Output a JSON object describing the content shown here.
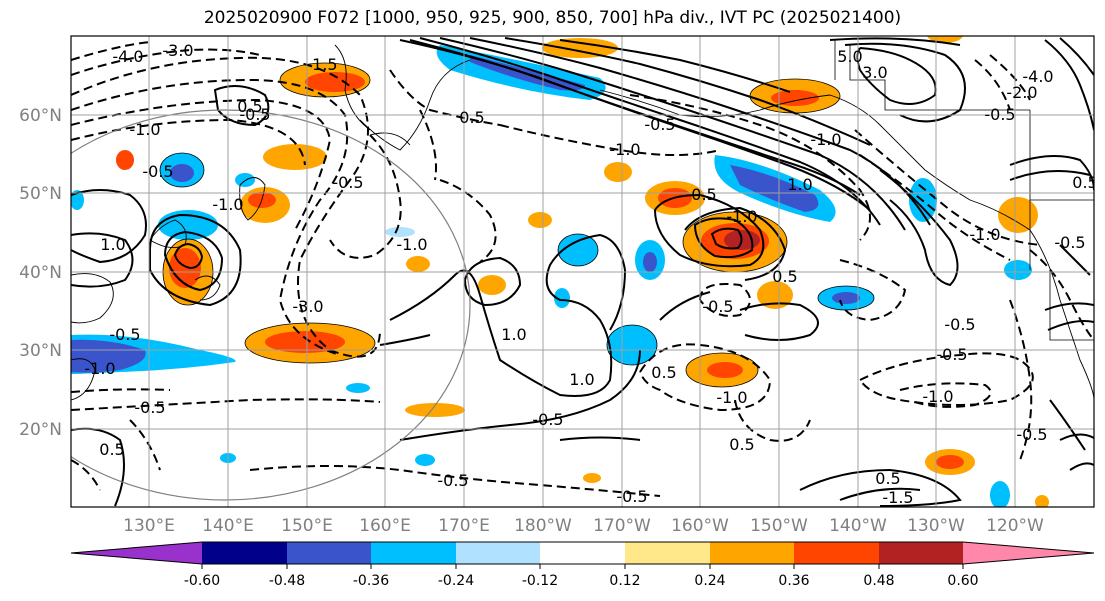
{
  "title": "2025020900 F072 [1000, 950, 925, 900, 850, 700] hPa div., IVT PC (2025021400)",
  "lat_labels": [
    "60°N",
    "50°N",
    "40°N",
    "30°N",
    "20°N"
  ],
  "lon_labels": [
    "130°E",
    "140°E",
    "150°E",
    "160°E",
    "170°E",
    "180°W",
    "170°W",
    "160°W",
    "150°W",
    "140°W",
    "130°W",
    "120°W"
  ],
  "colorbar": {
    "colors": [
      "#9932cc",
      "#00008b",
      "#3a55cc",
      "#00bfff",
      "#b0e2ff",
      "#ffffff",
      "#ffe88a",
      "#ffa500",
      "#ff4500",
      "#b22222",
      "#ff88aa"
    ],
    "tick_labels": [
      "-0.60",
      "-0.48",
      "-0.36",
      "-0.24",
      "-0.12",
      "0.12",
      "0.24",
      "0.36",
      "0.48",
      "0.60"
    ]
  },
  "contour_labels": [
    "-4.0",
    "-3.0",
    "-1.5",
    "-1.0",
    "-0.5",
    "-0.5",
    "-1.0",
    "-0.5",
    "-1.0",
    "-3.0",
    "1.0",
    "-1.0",
    "-0.5",
    "1.0",
    "-0.5",
    "1.0",
    "0.5",
    "-1.0",
    "0.5",
    "-1.0",
    "-0.5",
    "-0.5",
    "-1.0",
    "1.0",
    "0.5",
    "-0.5",
    "-0.5",
    "-1.0",
    "0.5",
    "-0.5",
    "-1.5",
    "-1.0",
    "0.5",
    "0.5",
    "-0.5",
    "0.5",
    "-0.5",
    "5.0",
    "3.0",
    "-4.0",
    "-2.0",
    "-1.0",
    "-0.5",
    "-0.5",
    "0.5",
    "-0.5",
    "0.5"
  ]
}
